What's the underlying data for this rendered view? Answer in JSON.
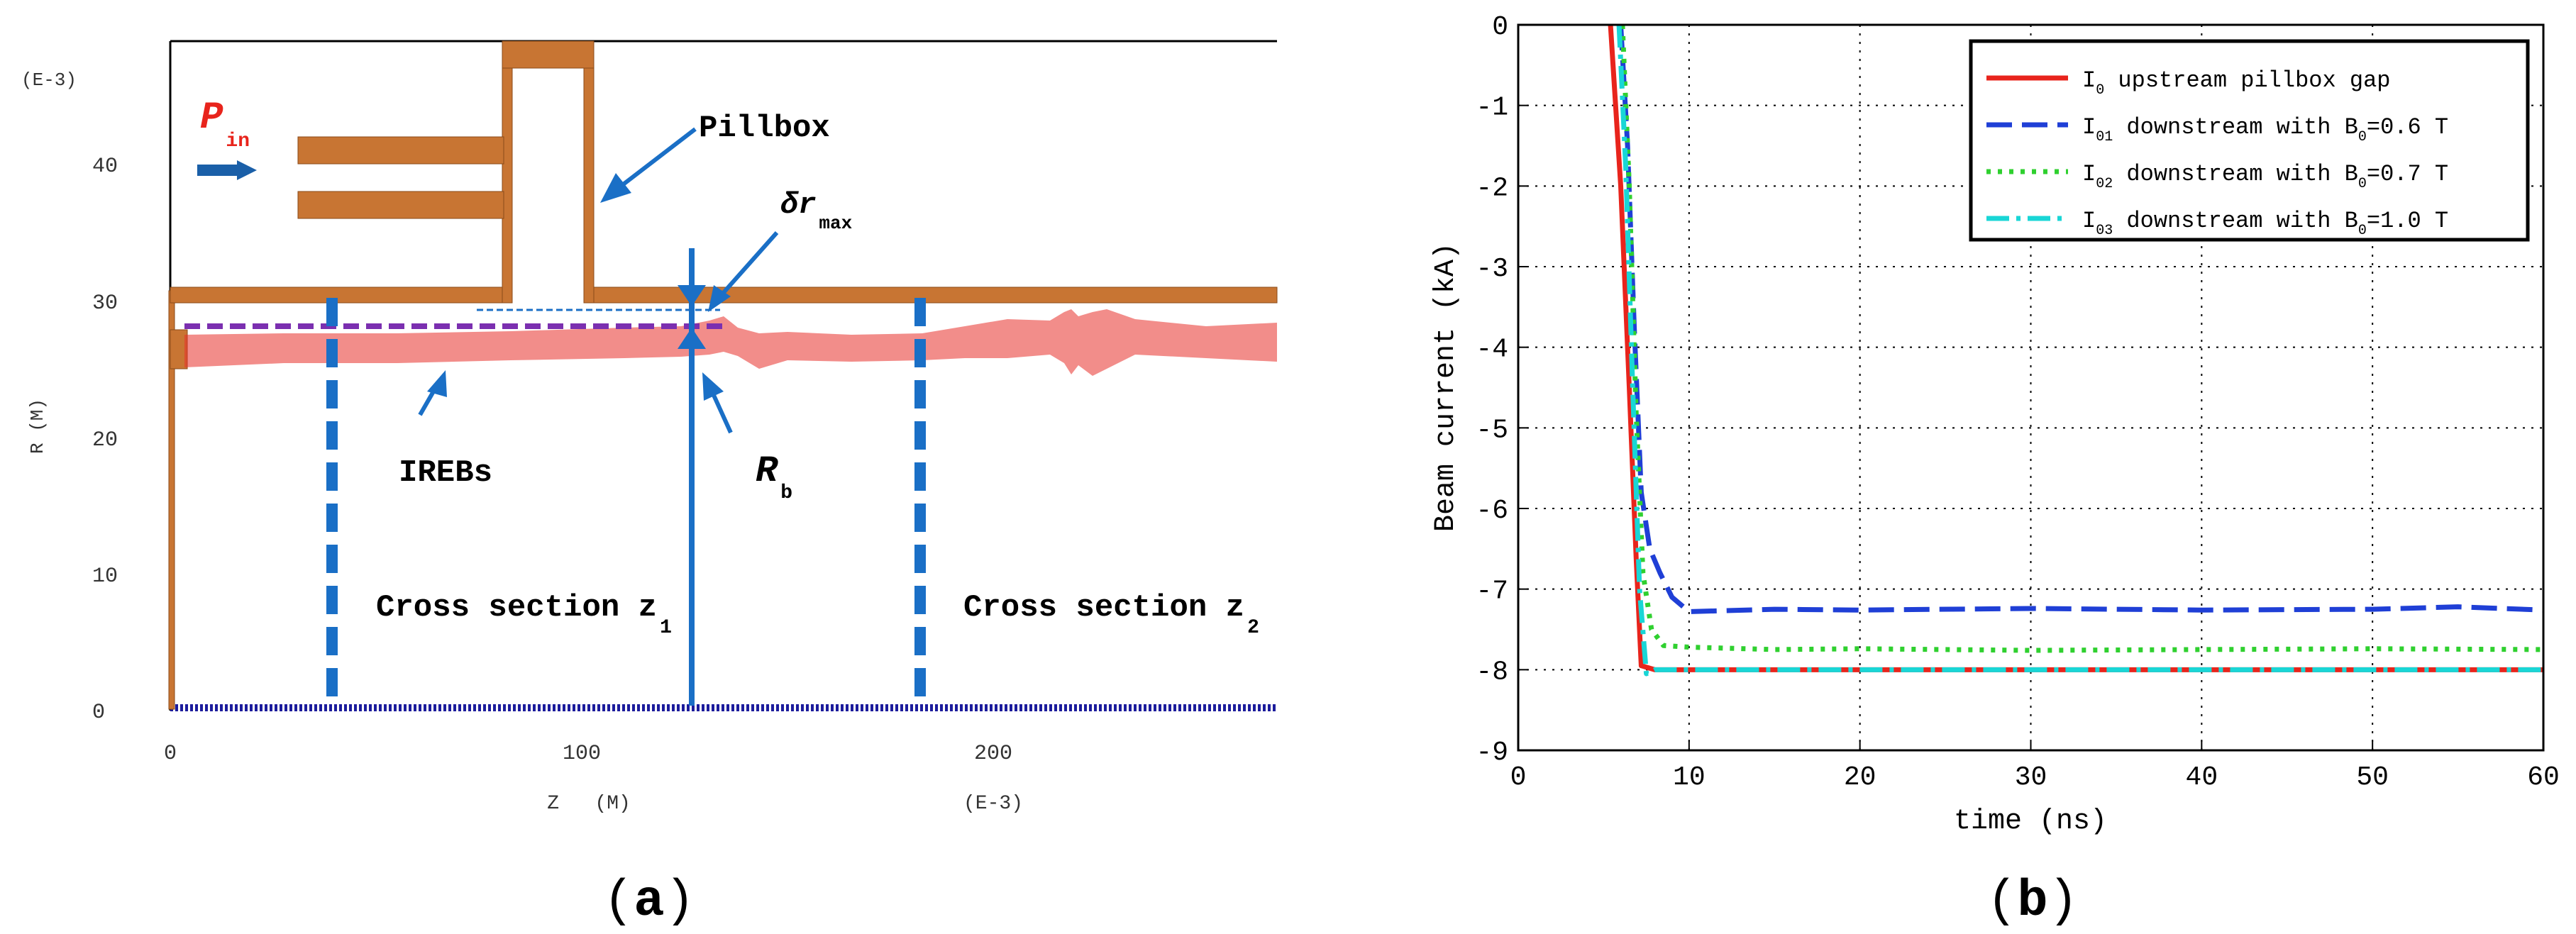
{
  "panel_a": {
    "letter": "a",
    "z_axis": {
      "label": "Z   (M)",
      "scale": "(E-3)",
      "ticks": [
        "0",
        "100",
        "200"
      ]
    },
    "r_axis": {
      "label": "R   (M)",
      "scale": "(E-3)",
      "ticks": [
        "0",
        "10",
        "20",
        "30",
        "40"
      ]
    },
    "annotations": {
      "pin_main": "P",
      "pin_sub": "in",
      "pillbox": "Pillbox",
      "delta_r_main": "δr",
      "delta_r_sub": "max",
      "irebs": "IREBs",
      "rb_main": "R",
      "rb_sub": "b",
      "cross1_main": "Cross section z",
      "cross1_sub": "1",
      "cross2_main": "Cross section z",
      "cross2_sub": "2"
    },
    "colors": {
      "structure": "#c87533",
      "beam": "#e8302a",
      "marker": "#1a6fc6",
      "dashed_radius": "#7b2fb0",
      "axis_line": "#1c1c9c"
    }
  },
  "panel_b": {
    "letter": "b",
    "chart_data": {
      "type": "line",
      "title": "",
      "xlabel": "time (ns)",
      "ylabel": "Beam current (kA)",
      "xlim": [
        0,
        60
      ],
      "ylim": [
        -9,
        0
      ],
      "x_ticks": [
        "0",
        "10",
        "20",
        "30",
        "40",
        "50",
        "60"
      ],
      "y_ticks": [
        "0",
        "-1",
        "-2",
        "-3",
        "-4",
        "-5",
        "-6",
        "-7",
        "-8",
        "-9"
      ],
      "grid": true,
      "legend_position": "top-right",
      "series": [
        {
          "name_main": "I",
          "name_sub": "0",
          "name_rest": " upstream pillbox gap",
          "name_mid": "",
          "name_sub2": "",
          "name_end": "",
          "color": "#e8241c",
          "style": "solid",
          "x": [
            5.4,
            6.0,
            6.5,
            6.9,
            7.2,
            8,
            10,
            20,
            30,
            40,
            50,
            60
          ],
          "y": [
            0,
            -2.0,
            -4.5,
            -6.6,
            -7.95,
            -8.0,
            -8.0,
            -8.0,
            -8.0,
            -8.0,
            -8.0,
            -8.0
          ]
        },
        {
          "name_main": "I",
          "name_sub": "01",
          "name_rest": " downstream with B",
          "name_mid": "",
          "name_sub2": "0",
          "name_end": "=0.6 T",
          "color": "#1f3fd6",
          "style": "dashed",
          "x": [
            6.0,
            6.4,
            6.8,
            7.2,
            7.7,
            8.3,
            9.0,
            10,
            15,
            20,
            30,
            40,
            50,
            55,
            60
          ],
          "y": [
            0,
            -1.5,
            -3.8,
            -5.8,
            -6.5,
            -6.8,
            -7.1,
            -7.28,
            -7.25,
            -7.26,
            -7.24,
            -7.26,
            -7.25,
            -7.22,
            -7.26
          ]
        },
        {
          "name_main": "I",
          "name_sub": "02",
          "name_rest": " downstream with B",
          "name_mid": "",
          "name_sub2": "0",
          "name_end": "=0.7 T",
          "color": "#2fd02f",
          "style": "dotted",
          "x": [
            6.1,
            6.5,
            6.9,
            7.3,
            7.8,
            8.5,
            10,
            15,
            20,
            30,
            40,
            50,
            60
          ],
          "y": [
            0,
            -2.0,
            -4.8,
            -6.8,
            -7.5,
            -7.7,
            -7.72,
            -7.75,
            -7.74,
            -7.76,
            -7.75,
            -7.74,
            -7.75
          ]
        },
        {
          "name_main": "I",
          "name_sub": "03",
          "name_rest": " downstream with B",
          "name_mid": "",
          "name_sub2": "0",
          "name_end": "=1.0 T",
          "color": "#19d6d6",
          "style": "dashdot",
          "x": [
            5.9,
            6.3,
            6.7,
            7.1,
            7.5,
            8.0,
            10,
            20,
            30,
            40,
            50,
            60
          ],
          "y": [
            0,
            -1.8,
            -4.5,
            -7.0,
            -8.05,
            -8.0,
            -8.0,
            -8.0,
            -8.0,
            -8.0,
            -8.0,
            -8.0
          ]
        }
      ]
    }
  }
}
